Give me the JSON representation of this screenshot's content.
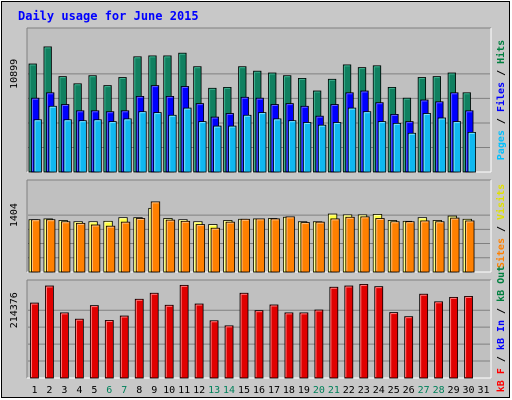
{
  "chart_data": {
    "type": "bar",
    "title": "Daily usage for June 2015",
    "days": [
      "1",
      "2",
      "3",
      "4",
      "5",
      "6",
      "7",
      "8",
      "9",
      "10",
      "11",
      "12",
      "13",
      "14",
      "15",
      "16",
      "17",
      "18",
      "19",
      "20",
      "21",
      "22",
      "23",
      "24",
      "25",
      "26",
      "27",
      "28",
      "29",
      "30",
      "31"
    ],
    "weekend_days": [
      6,
      7,
      13,
      14,
      20,
      21,
      27,
      28
    ],
    "panels": [
      {
        "id": "top",
        "tick_label": "10899",
        "tick_value": 10899,
        "ylim": [
          0,
          16000
        ],
        "legend": [
          {
            "text": "Pages",
            "color": "#00c0ff"
          },
          {
            "text": " / ",
            "color": "#000000"
          },
          {
            "text": "Files",
            "color": "#0000ff"
          },
          {
            "text": " / ",
            "color": "#000000"
          },
          {
            "text": "Hits",
            "color": "#008040"
          }
        ],
        "series": [
          {
            "name": "Hits",
            "color": "#108060",
            "values": [
              12000,
              13900,
              10600,
              9800,
              10700,
              9600,
              10500,
              12800,
              12900,
              12900,
              13200,
              11700,
              9300,
              9400,
              11700,
              11200,
              11000,
              10700,
              10400,
              9000,
              10300,
              11900,
              11600,
              11800,
              9400,
              8200,
              10500,
              10600,
              11000,
              8800,
              null
            ]
          },
          {
            "name": "Files",
            "color": "#0000ff",
            "values": [
              8200,
              8800,
              7500,
              6800,
              6800,
              6700,
              6800,
              8400,
              9600,
              8400,
              9500,
              7600,
              6100,
              6500,
              8300,
              8200,
              7500,
              7600,
              7300,
              6200,
              7500,
              8800,
              9000,
              7700,
              6400,
              5600,
              8000,
              7800,
              8800,
              6800,
              null
            ]
          },
          {
            "name": "Pages",
            "color": "#10b8f0",
            "values": [
              5800,
              7300,
              5800,
              5700,
              5800,
              5600,
              5900,
              6700,
              6600,
              6300,
              7100,
              5600,
              5100,
              5100,
              6300,
              6600,
              5900,
              5700,
              5500,
              5200,
              5500,
              7100,
              6700,
              5600,
              5400,
              4300,
              6500,
              6000,
              5600,
              4400,
              null
            ]
          }
        ]
      },
      {
        "id": "middle",
        "tick_label": "1404",
        "tick_value": 1404,
        "ylim": [
          0,
          2270
        ],
        "legend": [
          {
            "text": "Sites",
            "color": "#ff8000"
          },
          {
            "text": " / ",
            "color": "#000000"
          },
          {
            "text": "Visits",
            "color": "#e0e000"
          }
        ],
        "series": [
          {
            "name": "Visits",
            "color": "#ffff40",
            "values": [
              1290,
              1310,
              1270,
              1240,
              1240,
              1250,
              1340,
              1340,
              1570,
              1320,
              1290,
              1240,
              1170,
              1270,
              1300,
              1310,
              1320,
              1350,
              1240,
              1240,
              1430,
              1410,
              1410,
              1420,
              1270,
              1250,
              1340,
              1270,
              1380,
              1300,
              null
            ]
          },
          {
            "name": "Sites",
            "color": "#ff8000",
            "values": [
              1290,
              1290,
              1240,
              1200,
              1160,
              1130,
              1230,
              1320,
              1730,
              1280,
              1250,
              1170,
              1080,
              1230,
              1300,
              1310,
              1310,
              1360,
              1220,
              1230,
              1310,
              1350,
              1360,
              1320,
              1240,
              1240,
              1260,
              1240,
              1330,
              1260,
              null
            ]
          }
        ]
      },
      {
        "id": "bottom",
        "tick_label": "214376",
        "tick_value": 214376,
        "ylim": [
          0,
          310000
        ],
        "legend": [
          {
            "text": "kB F",
            "color": "#ff0000"
          },
          {
            "text": " / ",
            "color": "#000000"
          },
          {
            "text": "kB In",
            "color": "#0000ff"
          },
          {
            "text": " / ",
            "color": "#000000"
          },
          {
            "text": "kB Out",
            "color": "#008040"
          }
        ],
        "series": [
          {
            "name": "kB F",
            "color": "#e00000",
            "values": [
              237000,
              291000,
              206000,
              186000,
              229000,
              182000,
              196000,
              249000,
              268000,
              230000,
              293000,
              234000,
              181000,
              165000,
              268000,
              213000,
              231000,
              206000,
              206000,
              215000,
              287000,
              291000,
              296000,
              289000,
              207000,
              194000,
              265000,
              241000,
              255000,
              258000,
              null
            ]
          }
        ]
      }
    ]
  }
}
